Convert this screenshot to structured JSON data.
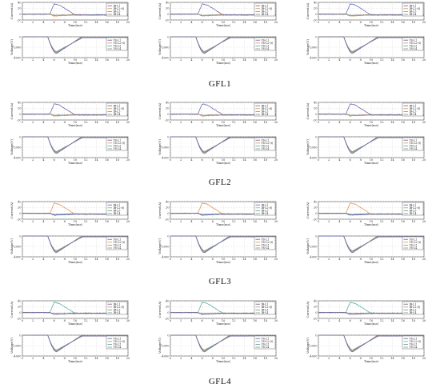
{
  "figure": {
    "group_labels": [
      "GFL1",
      "GFL2",
      "GFL3",
      "GFL4"
    ]
  },
  "chart_data": {
    "type": "line",
    "layout": "4 groups x 3 columns, each cell a current subplot above a voltage subplot",
    "current_axis": {
      "ylabel": "Current(A)",
      "xlabel": "Time(ms)",
      "xlim": [
        0,
        20
      ],
      "ylim": [
        -20,
        40
      ],
      "xticks": [
        0,
        2,
        4,
        6,
        8,
        10,
        12,
        14,
        16,
        18,
        20
      ],
      "yticks": [
        -20,
        0,
        20,
        40
      ],
      "grid": true
    },
    "voltage_axis": {
      "ylabel": "Voltage(V)",
      "xlabel": "Time(ms)",
      "xlim": [
        0,
        20
      ],
      "ylim": [
        -4000,
        0
      ],
      "xticks": [
        0,
        2,
        4,
        6,
        8,
        10,
        12,
        14,
        16,
        18,
        20
      ],
      "yticks": [
        -4000,
        -2000,
        0
      ],
      "grid": true
    },
    "current_legend": [
      "IB-L1",
      "IB-L2-(t)",
      "IB-L3",
      "IB-L4"
    ],
    "voltage_legend": [
      "VS-L1",
      "VS-L2-(t)",
      "VS-L3",
      "VS-L4"
    ],
    "legend_position": "top-right",
    "series_colors": [
      "#5b5fb0",
      "#e08a3c",
      "#4aa89a",
      "#8a8a8a"
    ],
    "faulted_line_by_group": [
      1,
      1,
      2,
      3
    ],
    "current_fault": {
      "start_ms": 5.2,
      "peak_ms": 6.0,
      "peak_value": 35,
      "plateau_end_ms": 7.0,
      "end_ms": 10.0,
      "steady_value": -3,
      "counter_value": -6
    },
    "voltage_fault": {
      "start_ms": 4.8,
      "trough_ms": 6.5,
      "trough_value": -3200,
      "recover_ms": 11.0,
      "steady_value": -150
    }
  }
}
